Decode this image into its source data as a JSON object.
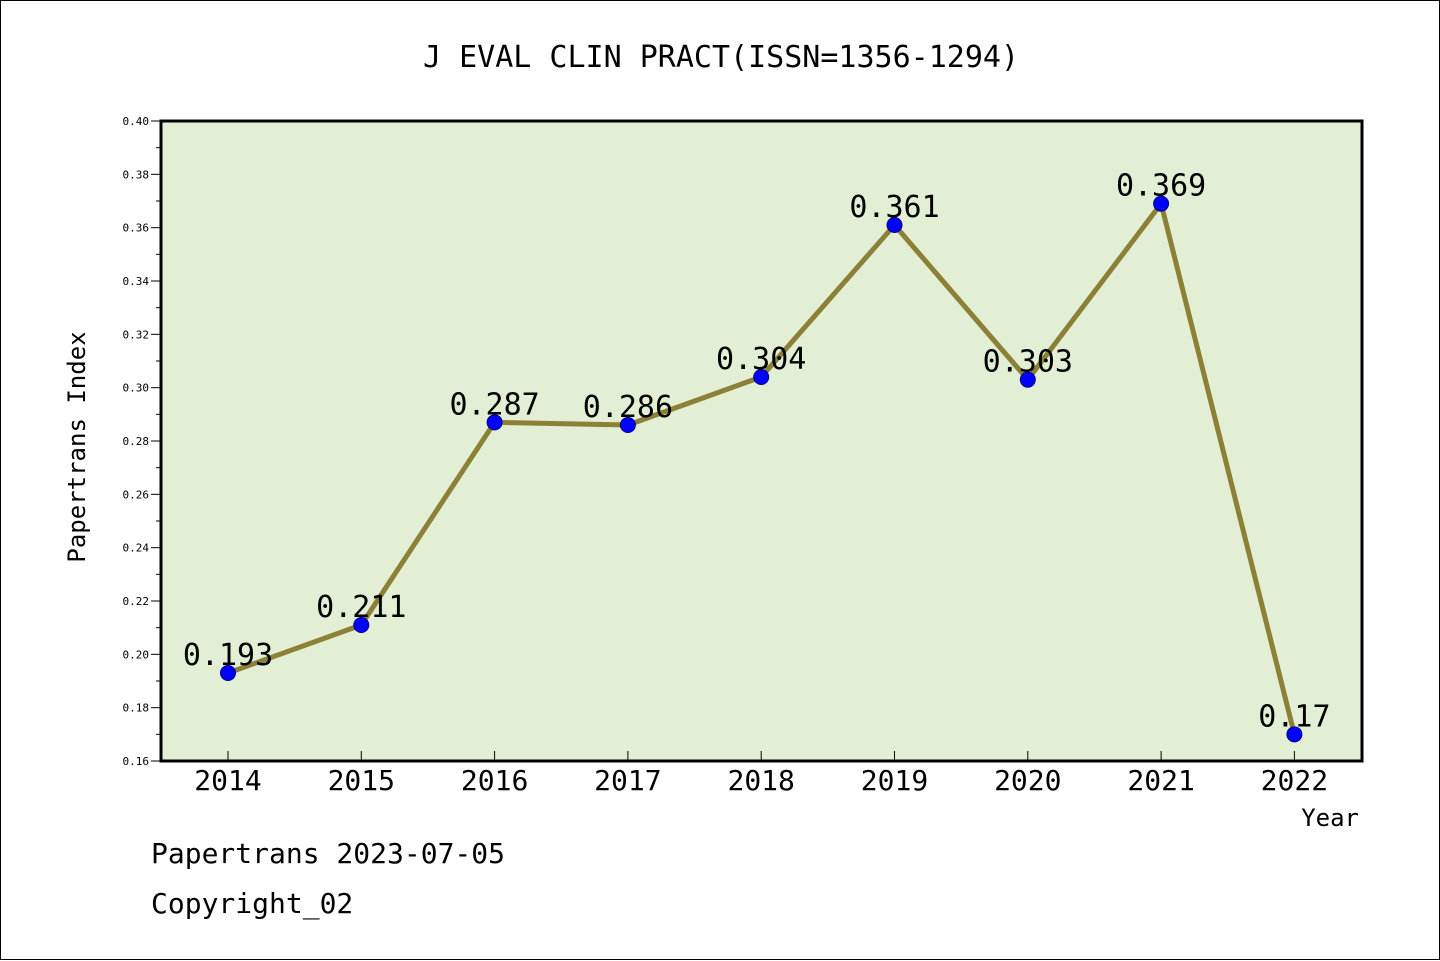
{
  "chart_data": {
    "type": "line",
    "title": "J EVAL CLIN PRACT(ISSN=1356-1294)",
    "xlabel": "Year",
    "ylabel": "Papertrans Index",
    "categories": [
      "2014",
      "2015",
      "2016",
      "2017",
      "2018",
      "2019",
      "2020",
      "2021",
      "2022"
    ],
    "values": [
      0.193,
      0.211,
      0.287,
      0.286,
      0.304,
      0.361,
      0.303,
      0.369,
      0.17
    ],
    "value_labels": [
      "0.193",
      "0.211",
      "0.287",
      "0.286",
      "0.304",
      "0.361",
      "0.303",
      "0.369",
      "0.17"
    ],
    "ylim": [
      0.16,
      0.4
    ],
    "yticks": [
      "0.16",
      "0.18",
      "0.20",
      "0.22",
      "0.24",
      "0.26",
      "0.28",
      "0.30",
      "0.32",
      "0.34",
      "0.36",
      "0.38",
      "0.40"
    ],
    "grid": false,
    "colors": {
      "plot_background": "#e2efd4",
      "line": "#8b8035",
      "marker": "#0000ff"
    }
  },
  "footer": {
    "line1": "Papertrans 2023-07-05",
    "line2": "Copyright_02"
  }
}
